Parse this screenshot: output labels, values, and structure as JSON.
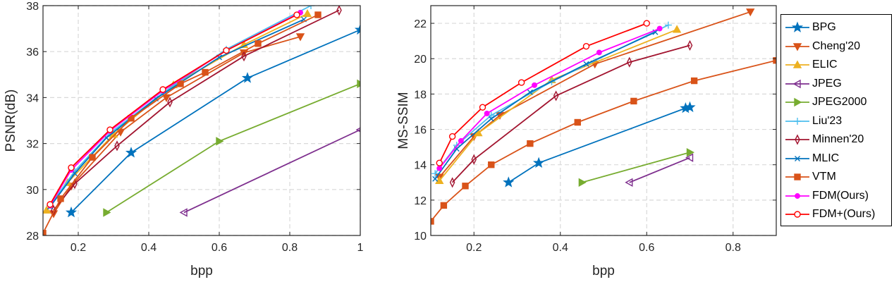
{
  "legend": [
    {
      "name": "BPG",
      "color": "#0072BD",
      "marker": "star"
    },
    {
      "name": "Cheng'20",
      "color": "#D95319",
      "marker": "tri-down"
    },
    {
      "name": "ELIC",
      "color": "#EDB120",
      "marker": "tri-up"
    },
    {
      "name": "JPEG",
      "color": "#7E2F8E",
      "marker": "tri-left"
    },
    {
      "name": "JPEG2000",
      "color": "#77AC30",
      "marker": "tri-right"
    },
    {
      "name": "Liu'23",
      "color": "#4DBEEE",
      "marker": "plus"
    },
    {
      "name": "Minnen'20",
      "color": "#A2142F",
      "marker": "diamond"
    },
    {
      "name": "MLIC",
      "color": "#0072BD",
      "marker": "x"
    },
    {
      "name": "VTM",
      "color": "#D95319",
      "marker": "square"
    },
    {
      "name": "FDM(Ours)",
      "color": "#FF00FF",
      "marker": "dot"
    },
    {
      "name": "FDM+(Ours)",
      "color": "#FF0000",
      "marker": "circle"
    }
  ],
  "chart_data": [
    {
      "type": "line",
      "xlabel": "bpp",
      "ylabel": "PSNR(dB)",
      "xlim": [
        0.1,
        1.0
      ],
      "ylim": [
        28,
        38
      ],
      "xticks": [
        0.2,
        0.4,
        0.6,
        0.8,
        1
      ],
      "xtick_labels": [
        "0.2",
        "0.4",
        "0.6",
        "0.8",
        "1"
      ],
      "yticks": [
        28,
        30,
        32,
        34,
        36,
        38
      ],
      "ytick_labels": [
        "28",
        "30",
        "32",
        "34",
        "36",
        "38"
      ],
      "grid": true,
      "series": [
        {
          "name": "BPG",
          "points": [
            [
              0.18,
              29.0
            ],
            [
              0.35,
              31.6
            ],
            [
              0.68,
              34.85
            ],
            [
              1.0,
              36.95
            ]
          ]
        },
        {
          "name": "Cheng'20",
          "points": [
            [
              0.13,
              28.95
            ],
            [
              0.18,
              30.15
            ],
            [
              0.32,
              32.5
            ],
            [
              0.45,
              34.0
            ],
            [
              0.67,
              35.95
            ],
            [
              0.83,
              36.65
            ]
          ]
        },
        {
          "name": "ELIC",
          "points": [
            [
              0.11,
              29.1
            ],
            [
              0.17,
              30.3
            ],
            [
              0.3,
              32.4
            ],
            [
              0.47,
              34.55
            ],
            [
              0.67,
              36.3
            ],
            [
              0.85,
              37.65
            ]
          ]
        },
        {
          "name": "JPEG",
          "points": [
            [
              0.5,
              29.0
            ],
            [
              1.0,
              32.6
            ]
          ]
        },
        {
          "name": "JPEG2000",
          "points": [
            [
              0.28,
              29.0
            ],
            [
              0.6,
              32.1
            ],
            [
              1.0,
              34.6
            ]
          ]
        },
        {
          "name": "Liu'23",
          "points": [
            [
              0.12,
              29.3
            ],
            [
              0.19,
              30.8
            ],
            [
              0.29,
              32.45
            ],
            [
              0.44,
              34.2
            ],
            [
              0.62,
              36.1
            ],
            [
              0.86,
              38.0
            ]
          ]
        },
        {
          "name": "Minnen'20",
          "points": [
            [
              0.13,
              29.1
            ],
            [
              0.19,
              30.25
            ],
            [
              0.31,
              31.9
            ],
            [
              0.46,
              33.8
            ],
            [
              0.67,
              35.8
            ],
            [
              0.94,
              37.8
            ]
          ]
        },
        {
          "name": "MLIC",
          "points": [
            [
              0.12,
              29.25
            ],
            [
              0.19,
              30.7
            ],
            [
              0.28,
              32.25
            ],
            [
              0.42,
              33.95
            ],
            [
              0.6,
              35.75
            ],
            [
              0.84,
              37.4
            ]
          ]
        },
        {
          "name": "VTM",
          "points": [
            [
              0.1,
              28.1
            ],
            [
              0.15,
              29.6
            ],
            [
              0.24,
              31.4
            ],
            [
              0.35,
              33.1
            ],
            [
              0.49,
              34.6
            ],
            [
              0.56,
              35.1
            ],
            [
              0.71,
              36.35
            ],
            [
              0.88,
              37.6
            ]
          ]
        },
        {
          "name": "FDM(Ours)",
          "points": [
            [
              0.12,
              29.3
            ],
            [
              0.18,
              30.85
            ],
            [
              0.29,
              32.55
            ],
            [
              0.44,
              34.3
            ],
            [
              0.62,
              36.05
            ],
            [
              0.83,
              37.7
            ]
          ]
        },
        {
          "name": "FDM+(Ours)",
          "points": [
            [
              0.12,
              29.35
            ],
            [
              0.18,
              30.95
            ],
            [
              0.29,
              32.6
            ],
            [
              0.44,
              34.35
            ],
            [
              0.62,
              36.05
            ],
            [
              0.82,
              37.6
            ]
          ]
        }
      ]
    },
    {
      "type": "line",
      "xlabel": "bpp",
      "ylabel": "MS-SSIM",
      "xlim": [
        0.1,
        0.9
      ],
      "ylim": [
        10,
        23
      ],
      "xticks": [
        0.2,
        0.4,
        0.6,
        0.8
      ],
      "xtick_labels": [
        "0.2",
        "0.4",
        "0.6",
        "0.8"
      ],
      "yticks": [
        10,
        12,
        14,
        16,
        18,
        20,
        22
      ],
      "ytick_labels": [
        "10",
        "12",
        "14",
        "16",
        "18",
        "20",
        "22"
      ],
      "grid": true,
      "series": [
        {
          "name": "BPG",
          "points": [
            [
              0.28,
              13.0
            ],
            [
              0.35,
              14.1
            ],
            [
              0.69,
              17.2
            ],
            [
              0.7,
              17.25
            ]
          ]
        },
        {
          "name": "Cheng'20",
          "points": [
            [
              0.12,
              13.3
            ],
            [
              0.2,
              15.6
            ],
            [
              0.26,
              16.8
            ],
            [
              0.48,
              19.7
            ],
            [
              0.84,
              22.65
            ]
          ]
        },
        {
          "name": "ELIC",
          "points": [
            [
              0.12,
              13.1
            ],
            [
              0.21,
              15.8
            ],
            [
              0.38,
              18.8
            ],
            [
              0.67,
              21.65
            ]
          ]
        },
        {
          "name": "JPEG",
          "points": [
            [
              0.56,
              13.0
            ],
            [
              0.7,
              14.4
            ]
          ]
        },
        {
          "name": "JPEG2000",
          "points": [
            [
              0.45,
              13.0
            ],
            [
              0.7,
              14.7
            ]
          ]
        },
        {
          "name": "Liu'23",
          "points": [
            [
              0.11,
              13.5
            ],
            [
              0.16,
              15.1
            ],
            [
              0.24,
              16.8
            ],
            [
              0.38,
              18.7
            ],
            [
              0.65,
              21.9
            ]
          ]
        },
        {
          "name": "Minnen'20",
          "points": [
            [
              0.15,
              13.0
            ],
            [
              0.2,
              14.3
            ],
            [
              0.39,
              17.9
            ],
            [
              0.56,
              19.8
            ],
            [
              0.7,
              20.75
            ]
          ]
        },
        {
          "name": "MLIC",
          "points": [
            [
              0.11,
              13.2
            ],
            [
              0.16,
              14.9
            ],
            [
              0.24,
              16.6
            ],
            [
              0.33,
              18.1
            ],
            [
              0.46,
              19.7
            ],
            [
              0.62,
              21.5
            ]
          ]
        },
        {
          "name": "VTM",
          "points": [
            [
              0.1,
              10.8
            ],
            [
              0.13,
              11.7
            ],
            [
              0.18,
              12.8
            ],
            [
              0.24,
              14.0
            ],
            [
              0.33,
              15.2
            ],
            [
              0.44,
              16.4
            ],
            [
              0.57,
              17.6
            ],
            [
              0.71,
              18.75
            ],
            [
              0.9,
              19.9
            ]
          ]
        },
        {
          "name": "FDM(Ours)",
          "points": [
            [
              0.12,
              13.8
            ],
            [
              0.17,
              15.35
            ],
            [
              0.23,
              16.9
            ],
            [
              0.34,
              18.5
            ],
            [
              0.49,
              20.35
            ],
            [
              0.63,
              21.7
            ]
          ]
        },
        {
          "name": "FDM+(Ours)",
          "points": [
            [
              0.12,
              14.1
            ],
            [
              0.15,
              15.6
            ],
            [
              0.22,
              17.25
            ],
            [
              0.31,
              18.65
            ],
            [
              0.46,
              20.7
            ],
            [
              0.6,
              22.0
            ]
          ]
        }
      ]
    }
  ]
}
